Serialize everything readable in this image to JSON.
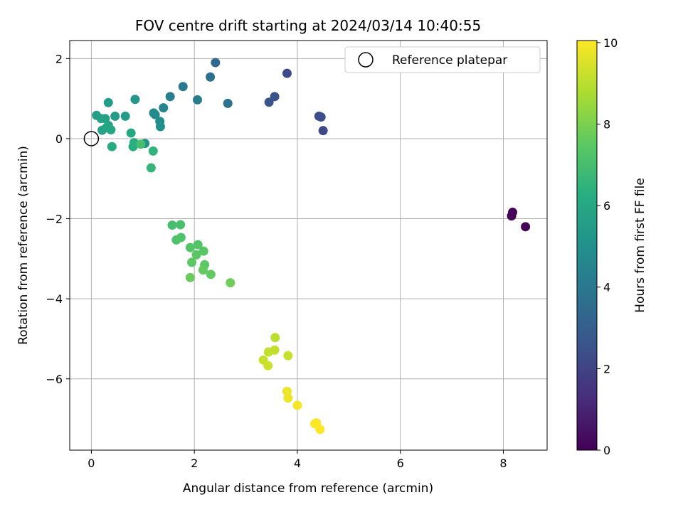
{
  "chart_data": {
    "type": "scatter",
    "title": "FOV centre drift starting at 2024/03/14 10:40:55",
    "xlabel": "Angular distance from reference (arcmin)",
    "ylabel": "Rotation from reference (arcmin)",
    "xlim": [
      -0.42,
      8.85
    ],
    "ylim": [
      -7.78,
      2.45
    ],
    "xticks": [
      0,
      2,
      4,
      6,
      8
    ],
    "yticks": [
      2,
      0,
      -2,
      -4,
      -6
    ],
    "grid": true,
    "colormap": "viridis",
    "colorbar": {
      "label": "Hours from first FF file",
      "min": 0,
      "max": 10.05,
      "ticks": [
        0,
        2,
        4,
        6,
        8,
        10
      ]
    },
    "legend": {
      "position": "top-right",
      "entries": [
        {
          "label": "Reference platepar",
          "marker": "open-circle"
        }
      ]
    },
    "reference_point": {
      "x": 0,
      "y": 0
    },
    "points": [
      {
        "x": 8.18,
        "y": -1.84,
        "t": 0.05
      },
      {
        "x": 8.16,
        "y": -1.93,
        "t": 0.1
      },
      {
        "x": 8.43,
        "y": -2.2,
        "t": 0.15
      },
      {
        "x": 3.8,
        "y": 1.63,
        "t": 2.3
      },
      {
        "x": 3.56,
        "y": 1.05,
        "t": 2.5
      },
      {
        "x": 3.45,
        "y": 0.91,
        "t": 2.6
      },
      {
        "x": 4.42,
        "y": 0.56,
        "t": 2.3
      },
      {
        "x": 4.46,
        "y": 0.54,
        "t": 2.4
      },
      {
        "x": 4.5,
        "y": 0.2,
        "t": 2.2
      },
      {
        "x": 2.41,
        "y": 1.9,
        "t": 3.4
      },
      {
        "x": 2.31,
        "y": 1.54,
        "t": 3.6
      },
      {
        "x": 2.65,
        "y": 0.88,
        "t": 3.8
      },
      {
        "x": 1.78,
        "y": 1.3,
        "t": 4.1
      },
      {
        "x": 2.06,
        "y": 0.97,
        "t": 4.2
      },
      {
        "x": 1.53,
        "y": 1.05,
        "t": 4.3
      },
      {
        "x": 1.4,
        "y": 0.77,
        "t": 4.5
      },
      {
        "x": 1.21,
        "y": 0.64,
        "t": 4.7
      },
      {
        "x": 1.24,
        "y": 0.6,
        "t": 4.8
      },
      {
        "x": 1.33,
        "y": 0.43,
        "t": 4.9
      },
      {
        "x": 1.34,
        "y": 0.3,
        "t": 5.0
      },
      {
        "x": 1.04,
        "y": -0.12,
        "t": 5.1
      },
      {
        "x": 0.85,
        "y": 0.98,
        "t": 5.3
      },
      {
        "x": 0.66,
        "y": 0.56,
        "t": 5.5
      },
      {
        "x": 0.46,
        "y": 0.56,
        "t": 5.5
      },
      {
        "x": 0.33,
        "y": 0.9,
        "t": 5.6
      },
      {
        "x": 0.1,
        "y": 0.58,
        "t": 5.6
      },
      {
        "x": 0.19,
        "y": 0.5,
        "t": 5.7
      },
      {
        "x": 0.27,
        "y": 0.5,
        "t": 5.7
      },
      {
        "x": 0.33,
        "y": 0.33,
        "t": 5.8
      },
      {
        "x": 0.21,
        "y": 0.21,
        "t": 5.8
      },
      {
        "x": 0.38,
        "y": 0.22,
        "t": 5.9
      },
      {
        "x": 0.29,
        "y": 0.27,
        "t": 5.9
      },
      {
        "x": 0.77,
        "y": 0.14,
        "t": 6.0
      },
      {
        "x": 0.4,
        "y": -0.2,
        "t": 6.1
      },
      {
        "x": 0.81,
        "y": -0.2,
        "t": 6.2
      },
      {
        "x": 0.83,
        "y": -0.1,
        "t": 6.3
      },
      {
        "x": 1.2,
        "y": -0.31,
        "t": 6.5
      },
      {
        "x": 1.16,
        "y": -0.73,
        "t": 6.6
      },
      {
        "x": 0.96,
        "y": -0.14,
        "t": 7.0
      },
      {
        "x": 1.57,
        "y": -2.16,
        "t": 7.0
      },
      {
        "x": 1.73,
        "y": -2.15,
        "t": 7.1
      },
      {
        "x": 1.74,
        "y": -2.47,
        "t": 7.2
      },
      {
        "x": 1.65,
        "y": -2.53,
        "t": 7.2
      },
      {
        "x": 1.92,
        "y": -2.72,
        "t": 7.3
      },
      {
        "x": 2.07,
        "y": -2.65,
        "t": 7.3
      },
      {
        "x": 2.18,
        "y": -2.81,
        "t": 7.4
      },
      {
        "x": 2.04,
        "y": -2.9,
        "t": 7.4
      },
      {
        "x": 1.95,
        "y": -3.09,
        "t": 7.5
      },
      {
        "x": 2.2,
        "y": -3.15,
        "t": 7.5
      },
      {
        "x": 2.17,
        "y": -3.28,
        "t": 7.6
      },
      {
        "x": 2.32,
        "y": -3.39,
        "t": 7.6
      },
      {
        "x": 1.92,
        "y": -3.47,
        "t": 7.7
      },
      {
        "x": 2.7,
        "y": -3.6,
        "t": 7.8
      },
      {
        "x": 3.57,
        "y": -4.97,
        "t": 9.0
      },
      {
        "x": 3.56,
        "y": -5.28,
        "t": 9.1
      },
      {
        "x": 3.44,
        "y": -5.33,
        "t": 9.1
      },
      {
        "x": 3.82,
        "y": -5.42,
        "t": 9.2
      },
      {
        "x": 3.34,
        "y": -5.53,
        "t": 9.2
      },
      {
        "x": 3.43,
        "y": -5.67,
        "t": 9.3
      },
      {
        "x": 3.8,
        "y": -6.31,
        "t": 9.8
      },
      {
        "x": 3.82,
        "y": -6.48,
        "t": 9.8
      },
      {
        "x": 4.0,
        "y": -6.66,
        "t": 9.9
      },
      {
        "x": 4.34,
        "y": -7.12,
        "t": 10.0
      },
      {
        "x": 4.37,
        "y": -7.1,
        "t": 10.0
      },
      {
        "x": 4.44,
        "y": -7.26,
        "t": 10.05
      }
    ]
  }
}
